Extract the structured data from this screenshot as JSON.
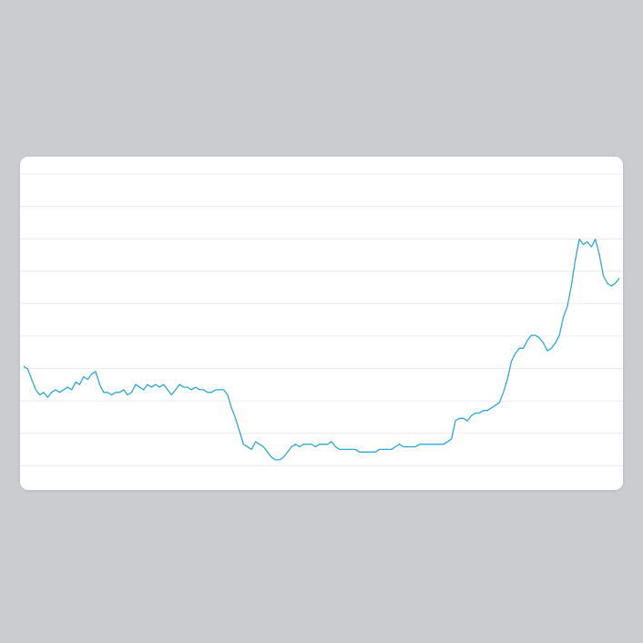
{
  "colors": {
    "background": "#cbccd0",
    "card": "#ffffff",
    "gridline": "#ececec",
    "line": "#2ea7d8"
  },
  "chart_data": {
    "type": "line",
    "title": "",
    "xlabel": "",
    "ylabel": "",
    "grid": true,
    "gridlines": 10,
    "legend": "none",
    "ylim": [
      0,
      100
    ],
    "points": [
      [
        0,
        35
      ],
      [
        1,
        34
      ],
      [
        2,
        30
      ],
      [
        3,
        26
      ],
      [
        4,
        24
      ],
      [
        5,
        25
      ],
      [
        6,
        23
      ],
      [
        7,
        25
      ],
      [
        8,
        26
      ],
      [
        9,
        25
      ],
      [
        10,
        26
      ],
      [
        11,
        27
      ],
      [
        12,
        26
      ],
      [
        13,
        29
      ],
      [
        14,
        28
      ],
      [
        15,
        31
      ],
      [
        16,
        30
      ],
      [
        17,
        32
      ],
      [
        18,
        33
      ],
      [
        19,
        28
      ],
      [
        20,
        25
      ],
      [
        21,
        25
      ],
      [
        22,
        24
      ],
      [
        23,
        25
      ],
      [
        24,
        25
      ],
      [
        25,
        26
      ],
      [
        26,
        24
      ],
      [
        27,
        25
      ],
      [
        28,
        28
      ],
      [
        29,
        27
      ],
      [
        30,
        26
      ],
      [
        31,
        28
      ],
      [
        32,
        27
      ],
      [
        33,
        28
      ],
      [
        34,
        27
      ],
      [
        35,
        28
      ],
      [
        36,
        26
      ],
      [
        37,
        24
      ],
      [
        38,
        26
      ],
      [
        39,
        28
      ],
      [
        40,
        27
      ],
      [
        41,
        27
      ],
      [
        42,
        26
      ],
      [
        43,
        27
      ],
      [
        44,
        26
      ],
      [
        45,
        26
      ],
      [
        46,
        25
      ],
      [
        47,
        25
      ],
      [
        48,
        26
      ],
      [
        49,
        26
      ],
      [
        50,
        26
      ],
      [
        51,
        24
      ],
      [
        52,
        19
      ],
      [
        53,
        15
      ],
      [
        54,
        10
      ],
      [
        55,
        5
      ],
      [
        56,
        4
      ],
      [
        57,
        3
      ],
      [
        58,
        6
      ],
      [
        59,
        5
      ],
      [
        60,
        4
      ],
      [
        61,
        2
      ],
      [
        62,
        0
      ],
      [
        63,
        -1
      ],
      [
        64,
        -1
      ],
      [
        65,
        0
      ],
      [
        66,
        2
      ],
      [
        67,
        4
      ],
      [
        68,
        5
      ],
      [
        69,
        4
      ],
      [
        70,
        5
      ],
      [
        71,
        5
      ],
      [
        72,
        5
      ],
      [
        73,
        4
      ],
      [
        74,
        5
      ],
      [
        75,
        5
      ],
      [
        76,
        5
      ],
      [
        77,
        6
      ],
      [
        78,
        4
      ],
      [
        79,
        3
      ],
      [
        80,
        3
      ],
      [
        81,
        3
      ],
      [
        82,
        3
      ],
      [
        83,
        3
      ],
      [
        84,
        2
      ],
      [
        85,
        2
      ],
      [
        86,
        2
      ],
      [
        87,
        2
      ],
      [
        88,
        2
      ],
      [
        89,
        3
      ],
      [
        90,
        3
      ],
      [
        91,
        3
      ],
      [
        92,
        3
      ],
      [
        93,
        4
      ],
      [
        94,
        5
      ],
      [
        95,
        4
      ],
      [
        96,
        4
      ],
      [
        97,
        4
      ],
      [
        98,
        4
      ],
      [
        99,
        5
      ],
      [
        100,
        5
      ],
      [
        101,
        5
      ],
      [
        102,
        5
      ],
      [
        103,
        5
      ],
      [
        104,
        5
      ],
      [
        105,
        5
      ],
      [
        106,
        6
      ],
      [
        107,
        7
      ],
      [
        108,
        14
      ],
      [
        109,
        15
      ],
      [
        110,
        15
      ],
      [
        111,
        14
      ],
      [
        112,
        16
      ],
      [
        113,
        17
      ],
      [
        114,
        17
      ],
      [
        115,
        18
      ],
      [
        116,
        18
      ],
      [
        117,
        19
      ],
      [
        118,
        20
      ],
      [
        119,
        21
      ],
      [
        120,
        25
      ],
      [
        121,
        30
      ],
      [
        122,
        37
      ],
      [
        123,
        40
      ],
      [
        124,
        42
      ],
      [
        125,
        42
      ],
      [
        126,
        45
      ],
      [
        127,
        47
      ],
      [
        128,
        47
      ],
      [
        129,
        46
      ],
      [
        130,
        44
      ],
      [
        131,
        41
      ],
      [
        132,
        42
      ],
      [
        133,
        44
      ],
      [
        134,
        47
      ],
      [
        135,
        54
      ],
      [
        136,
        58
      ],
      [
        137,
        66
      ],
      [
        138,
        76
      ],
      [
        139,
        84
      ],
      [
        140,
        82
      ],
      [
        141,
        83
      ],
      [
        142,
        81
      ],
      [
        143,
        84
      ],
      [
        144,
        78
      ],
      [
        145,
        70
      ],
      [
        146,
        67
      ],
      [
        147,
        66
      ],
      [
        148,
        67
      ],
      [
        149,
        69
      ]
    ]
  }
}
